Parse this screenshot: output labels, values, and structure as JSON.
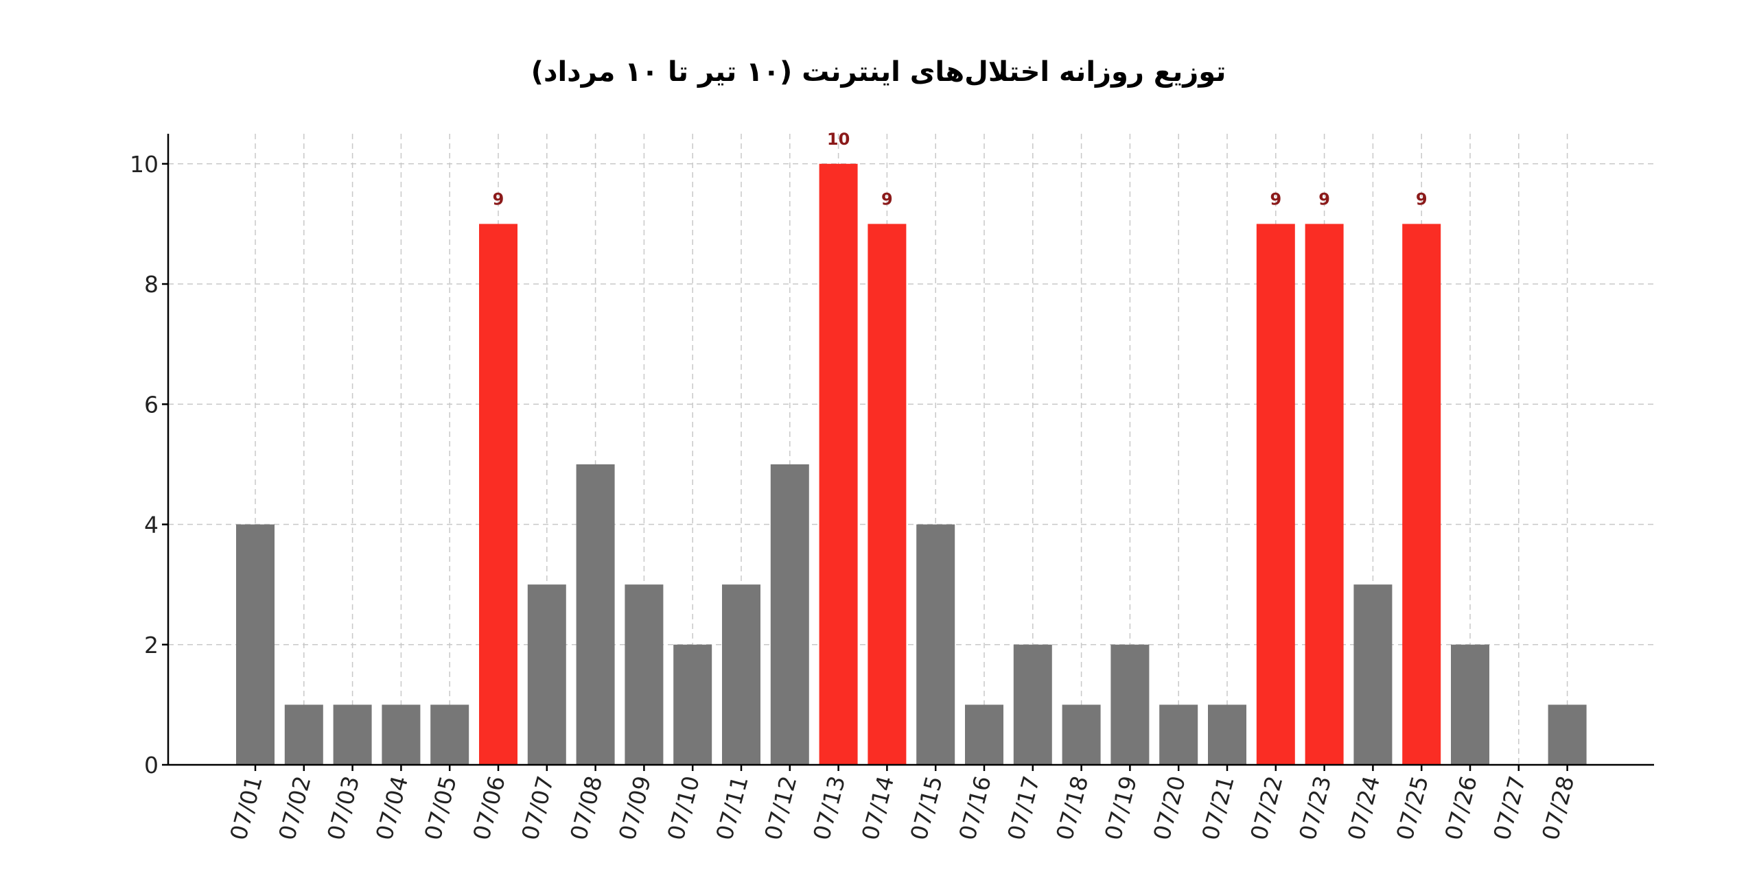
{
  "chart_data": {
    "type": "bar",
    "title": "توزیع روزانه اختلال‌های اینترنت (۱۰ تیر تا ۱۰ مرداد)",
    "xlabel": "",
    "ylabel": "",
    "categories": [
      "07/01",
      "07/02",
      "07/03",
      "07/04",
      "07/05",
      "07/06",
      "07/07",
      "07/08",
      "07/09",
      "07/10",
      "07/11",
      "07/12",
      "07/13",
      "07/14",
      "07/15",
      "07/16",
      "07/17",
      "07/18",
      "07/19",
      "07/20",
      "07/21",
      "07/22",
      "07/23",
      "07/24",
      "07/25",
      "07/26",
      "07/27",
      "07/28"
    ],
    "values": [
      4,
      1,
      1,
      1,
      1,
      9,
      3,
      5,
      3,
      2,
      3,
      5,
      10,
      9,
      4,
      1,
      2,
      1,
      2,
      1,
      1,
      9,
      9,
      3,
      9,
      2,
      0,
      1
    ],
    "highlighted": [
      false,
      false,
      false,
      false,
      false,
      true,
      false,
      false,
      false,
      false,
      false,
      false,
      true,
      true,
      false,
      false,
      false,
      false,
      false,
      false,
      false,
      true,
      true,
      false,
      true,
      false,
      false,
      false
    ],
    "data_labels": [
      "",
      "",
      "",
      "",
      "",
      "9",
      "",
      "",
      "",
      "",
      "",
      "",
      "10",
      "9",
      "",
      "",
      "",
      "",
      "",
      "",
      "",
      "9",
      "9",
      "",
      "9",
      "",
      "",
      ""
    ],
    "ylim": [
      0,
      10.5
    ],
    "yticks": [
      0,
      2,
      4,
      6,
      8,
      10
    ],
    "grid": true,
    "colors": {
      "normal": "#777777",
      "highlight": "#fa2d24",
      "label": "#8b1a1a",
      "grid": "#c8c8c8",
      "axis": "#000000"
    }
  }
}
